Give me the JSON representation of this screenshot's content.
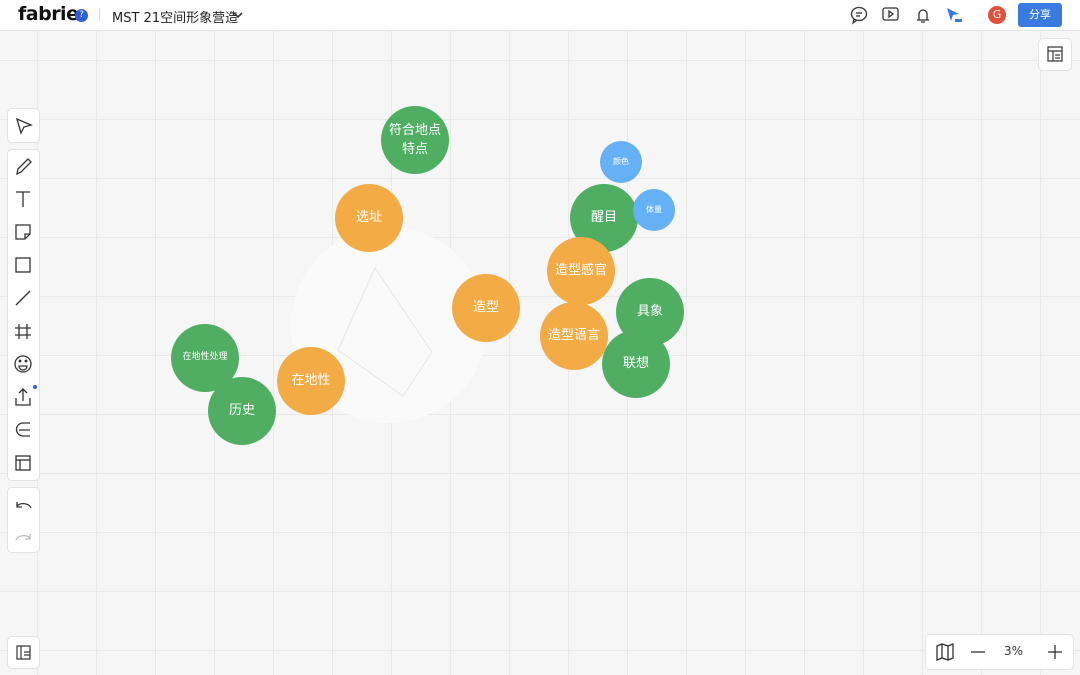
{
  "header": {
    "brand": "fabrie",
    "help": "?",
    "board_title": "MST 21空间形象营造",
    "avatar": "G",
    "share": "分享"
  },
  "zoom": {
    "level": "3%"
  },
  "nodes": [
    {
      "label": "符合地点特点"
    },
    {
      "label": "选址"
    },
    {
      "label": "造型"
    },
    {
      "label": "在地性"
    },
    {
      "label": "在地性处理"
    },
    {
      "label": "历史"
    },
    {
      "label": "颜色"
    },
    {
      "label": "醒目"
    },
    {
      "label": "体量"
    },
    {
      "label": "造型感官"
    },
    {
      "label": "具象"
    },
    {
      "label": "造型语言"
    },
    {
      "label": "联想"
    }
  ]
}
